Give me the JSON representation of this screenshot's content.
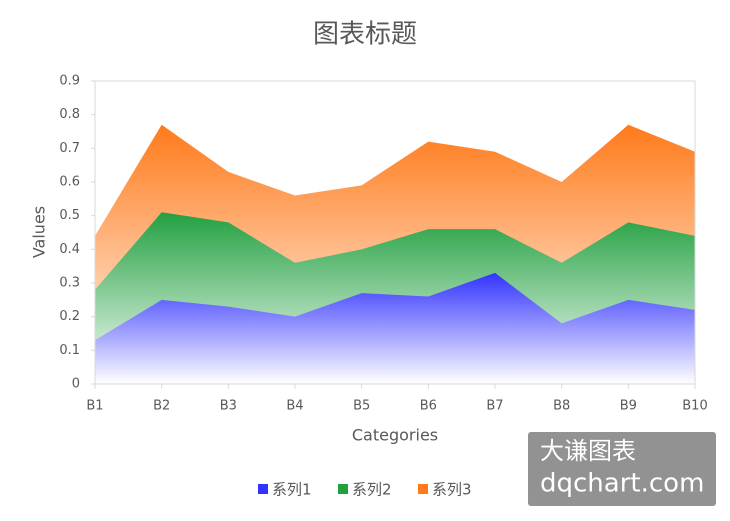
{
  "chart_data": {
    "type": "area",
    "title": "图表标题",
    "x_label": "Categories",
    "y_label": "Values",
    "categories": [
      "B1",
      "B2",
      "B3",
      "B4",
      "B5",
      "B6",
      "B7",
      "B8",
      "B9",
      "B10"
    ],
    "series": [
      {
        "name": "系列1",
        "color": "#3333ff",
        "values": [
          0.13,
          0.25,
          0.23,
          0.2,
          0.27,
          0.26,
          0.33,
          0.18,
          0.25,
          0.22
        ]
      },
      {
        "name": "系列2",
        "color": "#22a040",
        "values": [
          0.28,
          0.51,
          0.48,
          0.36,
          0.4,
          0.46,
          0.46,
          0.36,
          0.48,
          0.44
        ]
      },
      {
        "name": "系列3",
        "color": "#ff7a1a",
        "values": [
          0.44,
          0.77,
          0.63,
          0.56,
          0.59,
          0.72,
          0.69,
          0.6,
          0.77,
          0.69
        ]
      }
    ],
    "ylim": [
      0,
      0.9
    ],
    "yticks": [
      0,
      0.1,
      0.2,
      0.3,
      0.4,
      0.5,
      0.6,
      0.7,
      0.8,
      0.9
    ]
  },
  "watermark": {
    "line1": "大谦图表",
    "line2": "dqchart.com"
  }
}
